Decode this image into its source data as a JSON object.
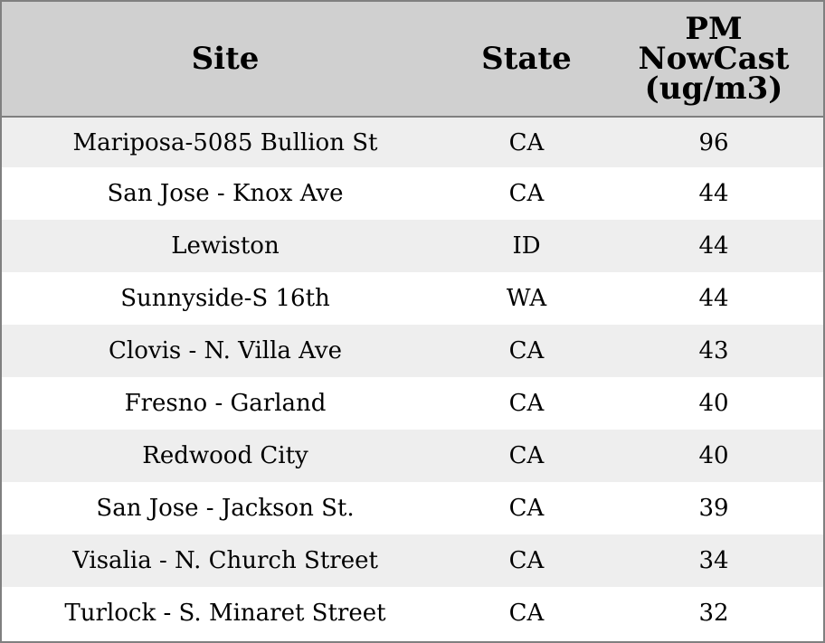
{
  "table": {
    "headers": {
      "site": "Site",
      "state": "State",
      "pm_lines": [
        "PM",
        "NowCast",
        "(ug/m3)"
      ]
    },
    "rows": [
      {
        "site": "Mariposa-5085 Bullion St",
        "state": "CA",
        "pm": "96"
      },
      {
        "site": "San Jose - Knox Ave",
        "state": "CA",
        "pm": "44"
      },
      {
        "site": "Lewiston",
        "state": "ID",
        "pm": "44"
      },
      {
        "site": "Sunnyside-S 16th",
        "state": "WA",
        "pm": "44"
      },
      {
        "site": "Clovis - N. Villa Ave",
        "state": "CA",
        "pm": "43"
      },
      {
        "site": "Fresno - Garland",
        "state": "CA",
        "pm": "40"
      },
      {
        "site": "Redwood City",
        "state": "CA",
        "pm": "40"
      },
      {
        "site": "San Jose - Jackson St.",
        "state": "CA",
        "pm": "39"
      },
      {
        "site": "Visalia - N. Church Street",
        "state": "CA",
        "pm": "34"
      },
      {
        "site": "Turlock - S. Minaret Street",
        "state": "CA",
        "pm": "32"
      }
    ]
  },
  "colors": {
    "header_bg": "#d0d0d0",
    "row_odd_bg": "#eeeeee",
    "row_even_bg": "#ffffff",
    "border": "#808080"
  }
}
